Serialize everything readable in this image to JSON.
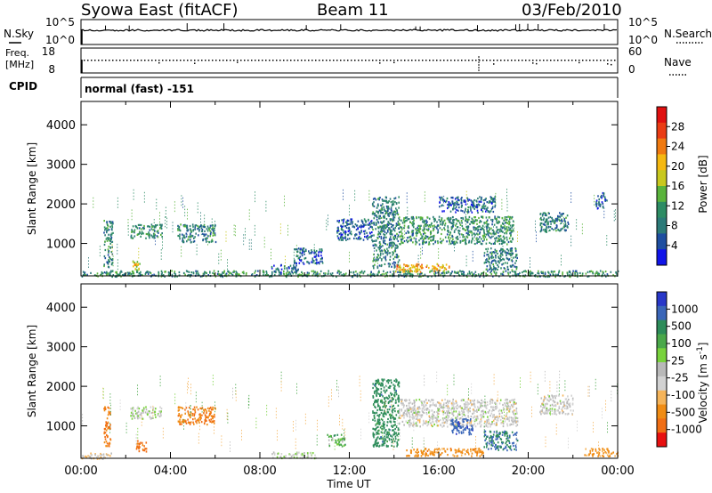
{
  "header": {
    "station": "Syowa East (fitACF)",
    "beam": "Beam 11",
    "date": "03/Feb/2010"
  },
  "status_panel": {
    "nsky_label": "N.Sky",
    "nsky_ticks": [
      "10^5",
      "10^0"
    ],
    "nsearch_label": "N.Search",
    "nsearch_ticks": [
      "10^5",
      "10^0"
    ],
    "freq_label": "Freq.",
    "freq_unit": "[MHz]",
    "freq_ticks": [
      "18",
      "8"
    ],
    "nave_label": "Nave",
    "nave_ticks": [
      "60",
      "0"
    ],
    "cpid_label": "CPID",
    "cpid_value": "normal (fast) -151"
  },
  "chart_data": [
    {
      "type": "heatmap",
      "name": "power-panel",
      "ylabel": "Slant Range [km]",
      "xlabel": "",
      "ylim": [
        180,
        4590
      ],
      "xlim": [
        0,
        24
      ],
      "yticks": [
        "4000",
        "3000",
        "2000",
        "1000"
      ],
      "xticks": [],
      "colorbar": {
        "label": "Power [dB]",
        "ticks": [
          "28",
          "24",
          "20",
          "16",
          "12",
          "8",
          "4"
        ],
        "colors": [
          "#e01010",
          "#ea3c14",
          "#f07a10",
          "#f5b810",
          "#c8c81e",
          "#5ab43c",
          "#2d8c64",
          "#2c7a78",
          "#1e4ea0",
          "#1014e8"
        ]
      },
      "echo_regions": [
        {
          "t": [
            0.0,
            24.0
          ],
          "range_km": [
            180,
            330
          ],
          "power_db": 10
        },
        {
          "t": [
            1.0,
            1.4
          ],
          "range_km": [
            420,
            1600
          ],
          "power_db": 8
        },
        {
          "t": [
            2.2,
            3.6
          ],
          "range_km": [
            1150,
            1500
          ],
          "power_db": 10
        },
        {
          "t": [
            4.3,
            6.0
          ],
          "range_km": [
            1050,
            1500
          ],
          "power_db": 8
        },
        {
          "t": [
            2.3,
            2.6
          ],
          "range_km": [
            350,
            650
          ],
          "power_db": 18
        },
        {
          "t": [
            8.5,
            9.7
          ],
          "range_km": [
            280,
            480
          ],
          "power_db": 6
        },
        {
          "t": [
            9.5,
            10.8
          ],
          "range_km": [
            500,
            900
          ],
          "power_db": 6
        },
        {
          "t": [
            11.4,
            13.0
          ],
          "range_km": [
            1100,
            1650
          ],
          "power_db": 6
        },
        {
          "t": [
            13.0,
            14.2
          ],
          "range_km": [
            400,
            2200
          ],
          "power_db": 8
        },
        {
          "t": [
            14.2,
            19.3
          ],
          "range_km": [
            1000,
            1700
          ],
          "power_db": 10
        },
        {
          "t": [
            14.0,
            16.5
          ],
          "range_km": [
            300,
            500
          ],
          "power_db": 20
        },
        {
          "t": [
            16.0,
            18.5
          ],
          "range_km": [
            1800,
            2200
          ],
          "power_db": 6
        },
        {
          "t": [
            18.0,
            19.5
          ],
          "range_km": [
            350,
            900
          ],
          "power_db": 8
        },
        {
          "t": [
            20.5,
            21.8
          ],
          "range_km": [
            1300,
            1800
          ],
          "power_db": 8
        },
        {
          "t": [
            23.0,
            23.5
          ],
          "range_km": [
            1900,
            2300
          ],
          "power_db": 6
        }
      ]
    },
    {
      "type": "heatmap",
      "name": "velocity-panel",
      "ylabel": "Slant Range [km]",
      "xlabel": "Time UT",
      "ylim": [
        180,
        4590
      ],
      "xlim": [
        0,
        24
      ],
      "yticks": [
        "4000",
        "3000",
        "2000",
        "1000"
      ],
      "xticks": [
        "00:00",
        "04:00",
        "08:00",
        "12:00",
        "16:00",
        "20:00",
        "00:00"
      ],
      "colorbar": {
        "label": "Velocity [m s^-1]",
        "ticks": [
          "1000",
          "500",
          "100",
          "25",
          "-25",
          "-100",
          "-500",
          "-1000"
        ],
        "colors": [
          "#2837c8",
          "#3a66b8",
          "#2d8c5a",
          "#4aa84a",
          "#78d23c",
          "#b9b9b9",
          "#d2d2d2",
          "#f5b45a",
          "#f08c14",
          "#f06e14",
          "#e81010"
        ]
      },
      "echo_regions": [
        {
          "t": [
            0.0,
            1.4
          ],
          "range_km": [
            180,
            330
          ],
          "velocity": -25
        },
        {
          "t": [
            1.0,
            1.3
          ],
          "range_km": [
            500,
            1500
          ],
          "velocity": -300
        },
        {
          "t": [
            2.2,
            3.6
          ],
          "range_km": [
            1200,
            1500
          ],
          "velocity": 10
        },
        {
          "t": [
            2.4,
            2.9
          ],
          "range_km": [
            350,
            650
          ],
          "velocity": -400
        },
        {
          "t": [
            4.3,
            6.0
          ],
          "range_km": [
            1050,
            1500
          ],
          "velocity": -300
        },
        {
          "t": [
            8.5,
            10.5
          ],
          "range_km": [
            200,
            350
          ],
          "velocity": 10
        },
        {
          "t": [
            11.0,
            11.8
          ],
          "range_km": [
            500,
            800
          ],
          "velocity": 60
        },
        {
          "t": [
            13.0,
            14.2
          ],
          "range_km": [
            500,
            2200
          ],
          "velocity": 200
        },
        {
          "t": [
            14.2,
            19.5
          ],
          "range_km": [
            1000,
            1700
          ],
          "velocity": 0
        },
        {
          "t": [
            14.5,
            18.0
          ],
          "range_km": [
            250,
            450
          ],
          "velocity": -200
        },
        {
          "t": [
            16.5,
            17.5
          ],
          "range_km": [
            800,
            1200
          ],
          "velocity": 600
        },
        {
          "t": [
            18.0,
            19.5
          ],
          "range_km": [
            400,
            900
          ],
          "velocity": 300
        },
        {
          "t": [
            20.5,
            22.0
          ],
          "range_km": [
            1300,
            1800
          ],
          "velocity": 0
        },
        {
          "t": [
            22.5,
            24.0
          ],
          "range_km": [
            250,
            450
          ],
          "velocity": -150
        }
      ]
    }
  ]
}
